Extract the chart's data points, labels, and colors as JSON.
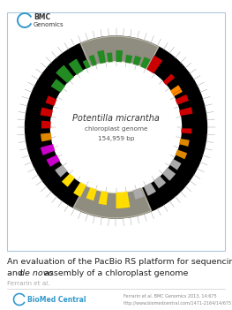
{
  "title_line1": "An evaluation of the PacBio RS platform for sequencing",
  "title_line2_pre": "and ",
  "title_line2_italic": "de novo",
  "title_line2_post": " assembly of a chloroplast genome",
  "author": "Ferrarin et al.",
  "journal_info": "Ferrarin et al. BMC Genomics 2013, 14:675",
  "doi": "http://www.biomedcentral.com/1471-2164/14/675",
  "journal_name_bmc": "BMC",
  "journal_name_genomics": "Genomics",
  "biomed_central": "BioMed Central",
  "genome_name_italic": "Potentilla micrantha",
  "genome_subtitle": "chloroplast genome",
  "genome_size": "154,959 bp",
  "figure_border_color": "#aac8e0",
  "background_color": "#ffffff",
  "bmc_arc_color": "#3399cc",
  "title_fontsize": 6.8,
  "author_fontsize": 5.2,
  "footer_fontsize": 3.5,
  "genome_name_fontsize": 7.0,
  "genome_sub_fontsize": 5.2,
  "gene_segments": [
    {
      "a1": 85,
      "a2": 90,
      "r1": 0.295,
      "r2": 0.355,
      "color": "#228b22"
    },
    {
      "a1": 93,
      "a2": 97,
      "r1": 0.295,
      "r2": 0.345,
      "color": "#228b22"
    },
    {
      "a1": 99,
      "a2": 104,
      "r1": 0.295,
      "r2": 0.36,
      "color": "#228b22"
    },
    {
      "a1": 107,
      "a2": 111,
      "r1": 0.295,
      "r2": 0.35,
      "color": "#228b22"
    },
    {
      "a1": 113,
      "a2": 117,
      "r1": 0.295,
      "r2": 0.34,
      "color": "#228b22"
    },
    {
      "a1": 120,
      "a2": 127,
      "r1": 0.295,
      "r2": 0.365,
      "color": "#228b22"
    },
    {
      "a1": 130,
      "a2": 138,
      "r1": 0.295,
      "r2": 0.375,
      "color": "#228b22"
    },
    {
      "a1": 141,
      "a2": 148,
      "r1": 0.295,
      "r2": 0.355,
      "color": "#228b22"
    },
    {
      "a1": 63,
      "a2": 68,
      "r1": 0.295,
      "r2": 0.35,
      "color": "#228b22"
    },
    {
      "a1": 70,
      "a2": 75,
      "r1": 0.295,
      "r2": 0.342,
      "color": "#228b22"
    },
    {
      "a1": 77,
      "a2": 82,
      "r1": 0.295,
      "r2": 0.338,
      "color": "#228b22"
    },
    {
      "a1": 55,
      "a2": 62,
      "r1": 0.295,
      "r2": 0.375,
      "color": "#cc0000"
    },
    {
      "a1": 40,
      "a2": 44,
      "r1": 0.295,
      "r2": 0.355,
      "color": "#cc0000"
    },
    {
      "a1": 20,
      "a2": 25,
      "r1": 0.295,
      "r2": 0.358,
      "color": "#cc0000"
    },
    {
      "a1": 10,
      "a2": 15,
      "r1": 0.295,
      "r2": 0.36,
      "color": "#cc0000"
    },
    {
      "a1": 355,
      "a2": 359,
      "r1": 0.295,
      "r2": 0.35,
      "color": "#cc0000"
    },
    {
      "a1": 175,
      "a2": 181,
      "r1": 0.295,
      "r2": 0.345,
      "color": "#cc0000"
    },
    {
      "a1": 165,
      "a2": 171,
      "r1": 0.295,
      "r2": 0.355,
      "color": "#cc0000"
    },
    {
      "a1": 155,
      "a2": 161,
      "r1": 0.295,
      "r2": 0.345,
      "color": "#cc0000"
    },
    {
      "a1": 30,
      "a2": 34,
      "r1": 0.295,
      "r2": 0.348,
      "color": "#ff8800"
    },
    {
      "a1": 28,
      "a2": 30,
      "r1": 0.295,
      "r2": 0.348,
      "color": "#ff8800"
    },
    {
      "a1": 345,
      "a2": 350,
      "r1": 0.295,
      "r2": 0.345,
      "color": "#dd8800"
    },
    {
      "a1": 335,
      "a2": 340,
      "r1": 0.295,
      "r2": 0.35,
      "color": "#dd8800"
    },
    {
      "a1": 185,
      "a2": 191,
      "r1": 0.295,
      "r2": 0.35,
      "color": "#dd8800"
    },
    {
      "a1": 325,
      "a2": 331,
      "r1": 0.295,
      "r2": 0.345,
      "color": "#aaaaaa"
    },
    {
      "a1": 315,
      "a2": 322,
      "r1": 0.295,
      "r2": 0.35,
      "color": "#aaaaaa"
    },
    {
      "a1": 305,
      "a2": 312,
      "r1": 0.295,
      "r2": 0.345,
      "color": "#aaaaaa"
    },
    {
      "a1": 295,
      "a2": 302,
      "r1": 0.295,
      "r2": 0.35,
      "color": "#aaaaaa"
    },
    {
      "a1": 285,
      "a2": 292,
      "r1": 0.295,
      "r2": 0.345,
      "color": "#aaaaaa"
    },
    {
      "a1": 215,
      "a2": 222,
      "r1": 0.295,
      "r2": 0.345,
      "color": "#aaaaaa"
    },
    {
      "a1": 270,
      "a2": 280,
      "r1": 0.295,
      "r2": 0.375,
      "color": "#ffdd00"
    },
    {
      "a1": 257,
      "a2": 263,
      "r1": 0.295,
      "r2": 0.362,
      "color": "#ffdd00"
    },
    {
      "a1": 247,
      "a2": 253,
      "r1": 0.295,
      "r2": 0.355,
      "color": "#ffdd00"
    },
    {
      "a1": 237,
      "a2": 243,
      "r1": 0.295,
      "r2": 0.362,
      "color": "#ffdd00"
    },
    {
      "a1": 225,
      "a2": 231,
      "r1": 0.295,
      "r2": 0.355,
      "color": "#ffdd00"
    },
    {
      "a1": 205,
      "a2": 211,
      "r1": 0.295,
      "r2": 0.355,
      "color": "#cc00cc"
    },
    {
      "a1": 195,
      "a2": 201,
      "r1": 0.295,
      "r2": 0.362,
      "color": "#cc00cc"
    }
  ],
  "ir_regions": [
    {
      "a1": 62,
      "a2": 113,
      "color": "#f0ead6",
      "alpha": 0.6
    },
    {
      "a1": 242,
      "a2": 293,
      "color": "#f0ead6",
      "alpha": 0.6
    }
  ]
}
